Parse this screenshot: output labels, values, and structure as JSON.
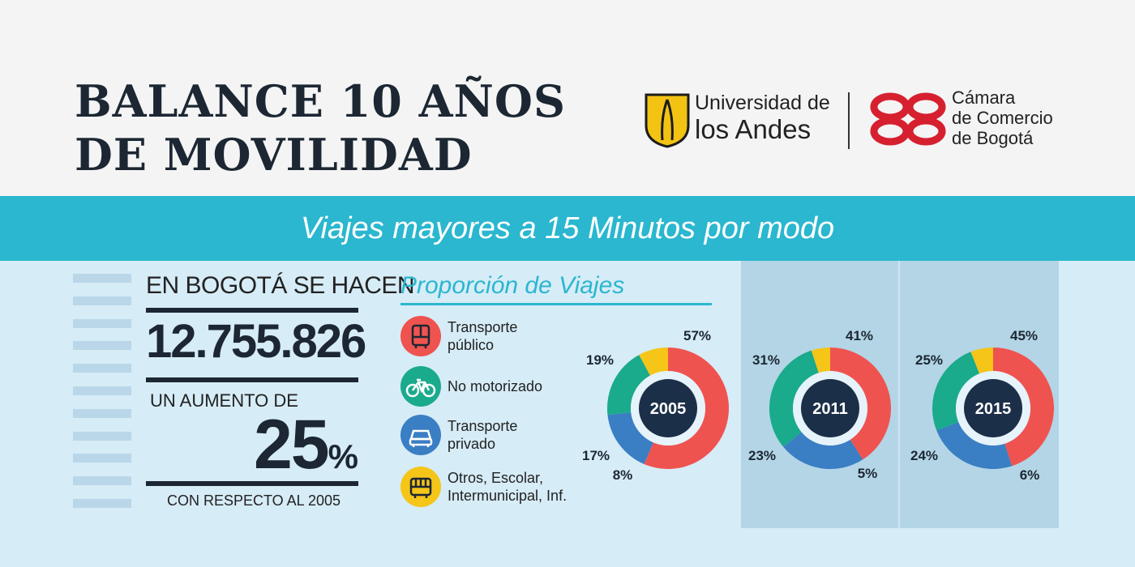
{
  "header": {
    "title_line1": "BALANCE 10 AÑOS",
    "title_line2": "DE MOVILIDAD",
    "logo_uandes": {
      "line1": "Universidad de",
      "line2": "los Andes"
    },
    "logo_ccb": {
      "line1": "Cámara",
      "line2": "de Comercio",
      "line3": "de Bogotá"
    }
  },
  "banner": {
    "text": "Viajes mayores a 15 Minutos por modo"
  },
  "stats": {
    "label1": "EN BOGOTÁ SE HACEN",
    "total_trips": "12.755.826",
    "label2": "UN AUMENTO DE",
    "increase_value": "25",
    "increase_symbol": "%",
    "label3": "CON RESPECTO AL 2005"
  },
  "legend": {
    "title": "Proporción de Viajes",
    "items": [
      {
        "label": "Transporte\npúblico",
        "color": "#ef5350",
        "icon": "bus-icon"
      },
      {
        "label": "No motorizado",
        "color": "#1aaa8c",
        "icon": "bicycle-icon"
      },
      {
        "label": "Transporte\nprivado",
        "color": "#3a7ec4",
        "icon": "car-icon"
      },
      {
        "label": "Otros, Escolar,\nIntermunicipal, Inf.",
        "color": "#f5c518",
        "icon": "school-bus-icon"
      }
    ]
  },
  "chart_data": {
    "type": "pie",
    "categories": [
      "Transporte público",
      "Transporte privado",
      "No motorizado",
      "Otros, Escolar, Intermunicipal, Inf."
    ],
    "colors": [
      "#ef5350",
      "#3a7ec4",
      "#1aaa8c",
      "#f5c518"
    ],
    "series": [
      {
        "name": "2005",
        "values": [
          57,
          17,
          19,
          8
        ],
        "labels": [
          "57%",
          "17%",
          "19%",
          "8%"
        ]
      },
      {
        "name": "2011",
        "values": [
          41,
          23,
          31,
          5
        ],
        "labels": [
          "41%",
          "23%",
          "31%",
          "5%"
        ]
      },
      {
        "name": "2015",
        "values": [
          45,
          24,
          25,
          6
        ],
        "labels": [
          "45%",
          "24%",
          "25%",
          "6%"
        ]
      }
    ]
  }
}
